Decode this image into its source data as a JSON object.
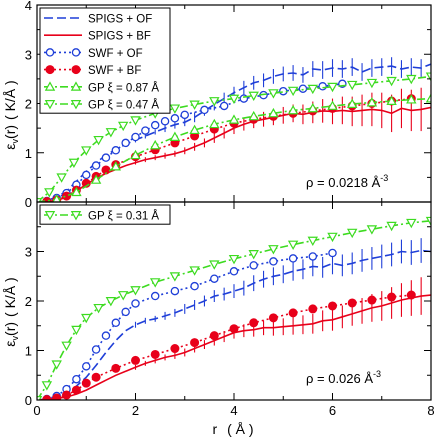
{
  "colors": {
    "blue": "#1f3fd8",
    "red": "#e8001a",
    "green": "#3ddb20",
    "frame": "#000000"
  },
  "shared_xaxis": {
    "label_prefix": "r",
    "label_unit": "( Å )",
    "ticks": [
      0,
      2,
      4,
      6,
      8
    ],
    "xlim": [
      0,
      8
    ]
  },
  "chart_data": [
    {
      "type": "line",
      "panel": "top",
      "ylabel_symbol": "ε",
      "ylabel_sub": "v",
      "ylabel_arg": "(r)",
      "ylabel_unit": "( K/Å )",
      "annotation": {
        "text": "ρ = 0.0218 Å",
        "sup": "-3"
      },
      "xlim": [
        0,
        8
      ],
      "ylim": [
        0,
        4
      ],
      "yticks": [
        0,
        1,
        2,
        3,
        4
      ],
      "legend_position": "top-left",
      "series": [
        {
          "name": "SPIGS + OF",
          "color": "#1f3fd8",
          "style": "dashed",
          "marker": "none",
          "x": [
            0,
            0.2,
            0.4,
            0.6,
            0.8,
            1.0,
            1.2,
            1.4,
            1.6,
            1.8,
            2.0,
            2.2,
            2.4,
            2.6,
            2.8,
            3.0,
            3.2,
            3.4,
            3.6,
            3.8,
            4.0,
            4.2,
            4.4,
            4.6,
            4.8,
            5.0,
            5.2,
            5.4,
            5.6,
            5.8,
            6.0,
            6.2,
            6.4,
            6.6,
            6.8,
            7.0,
            7.2,
            7.4,
            7.6,
            7.8,
            8.0
          ],
          "y": [
            0.0,
            0.03,
            0.1,
            0.22,
            0.42,
            0.62,
            0.8,
            0.95,
            1.07,
            1.17,
            1.26,
            1.34,
            1.42,
            1.5,
            1.57,
            1.62,
            1.72,
            1.85,
            1.98,
            2.1,
            2.22,
            2.32,
            2.42,
            2.47,
            2.55,
            2.6,
            2.62,
            2.58,
            2.7,
            2.68,
            2.72,
            2.7,
            2.74,
            2.64,
            2.72,
            2.74,
            2.76,
            2.7,
            2.74,
            2.72,
            2.8
          ],
          "errors": [
            0,
            0,
            0,
            0,
            0,
            0,
            0,
            0,
            0,
            0,
            0.05,
            0.05,
            0.05,
            0.08,
            0.08,
            0.08,
            0.1,
            0.1,
            0.12,
            0.12,
            0.12,
            0.14,
            0.14,
            0.14,
            0.15,
            0.15,
            0.16,
            0.16,
            0.16,
            0.18,
            0.18,
            0.18,
            0.18,
            0.18,
            0.18,
            0.18,
            0.18,
            0.18,
            0.18,
            0.18,
            0.18
          ]
        },
        {
          "name": "SPIGS + BF",
          "color": "#e8001a",
          "style": "solid",
          "marker": "none",
          "x": [
            0,
            0.2,
            0.4,
            0.6,
            0.8,
            1.0,
            1.2,
            1.4,
            1.6,
            1.8,
            2.0,
            2.2,
            2.4,
            2.6,
            2.8,
            3.0,
            3.2,
            3.4,
            3.6,
            3.8,
            4.0,
            4.2,
            4.4,
            4.6,
            4.8,
            5.0,
            5.2,
            5.4,
            5.6,
            5.8,
            6.0,
            6.2,
            6.4,
            6.6,
            6.8,
            7.0,
            7.2,
            7.4,
            7.6,
            7.8,
            8.0
          ],
          "y": [
            0.0,
            0.01,
            0.03,
            0.1,
            0.22,
            0.36,
            0.48,
            0.58,
            0.66,
            0.74,
            0.8,
            0.86,
            0.9,
            0.94,
            0.98,
            1.04,
            1.12,
            1.2,
            1.3,
            1.4,
            1.5,
            1.58,
            1.64,
            1.68,
            1.72,
            1.76,
            1.8,
            1.78,
            1.82,
            1.85,
            1.84,
            1.86,
            1.84,
            1.86,
            1.88,
            1.86,
            1.8,
            1.9,
            1.86,
            1.88,
            1.92
          ],
          "errors": [
            0,
            0,
            0,
            0,
            0,
            0,
            0,
            0,
            0,
            0,
            0.04,
            0.05,
            0.05,
            0.06,
            0.06,
            0.07,
            0.08,
            0.09,
            0.1,
            0.11,
            0.12,
            0.13,
            0.14,
            0.15,
            0.16,
            0.17,
            0.18,
            0.2,
            0.22,
            0.24,
            0.26,
            0.28,
            0.3,
            0.32,
            0.34,
            0.36,
            0.38,
            0.4,
            0.42,
            0.44,
            0.46
          ]
        },
        {
          "name": "SWF + OF",
          "color": "#1f3fd8",
          "style": "dotted",
          "marker": "open-circle",
          "x": [
            0.2,
            0.4,
            0.6,
            0.8,
            1.0,
            1.2,
            1.4,
            1.6,
            1.8,
            2.0,
            2.2,
            2.4,
            2.6,
            2.8,
            3.0,
            3.4,
            3.8,
            4.2,
            4.6,
            5.0,
            5.4,
            5.8,
            6.2
          ],
          "y": [
            0.02,
            0.08,
            0.18,
            0.35,
            0.55,
            0.74,
            0.9,
            1.05,
            1.2,
            1.32,
            1.45,
            1.56,
            1.64,
            1.7,
            1.77,
            1.87,
            1.95,
            2.1,
            2.17,
            2.25,
            2.3,
            2.35,
            2.4
          ]
        },
        {
          "name": "SWF + BF",
          "color": "#e8001a",
          "style": "dotted",
          "marker": "filled-circle",
          "x": [
            0.2,
            0.4,
            0.6,
            0.8,
            1.0,
            1.2,
            1.4,
            1.6,
            2.0,
            2.4,
            2.8,
            3.2,
            3.6,
            4.0,
            4.4,
            4.8,
            5.2,
            5.6,
            6.0,
            6.4,
            6.8,
            7.2,
            7.6
          ],
          "y": [
            0.01,
            0.04,
            0.12,
            0.24,
            0.38,
            0.52,
            0.65,
            0.76,
            0.92,
            1.06,
            1.2,
            1.34,
            1.48,
            1.6,
            1.68,
            1.74,
            1.8,
            1.85,
            1.9,
            1.95,
            2.0,
            2.05,
            2.1
          ]
        },
        {
          "name": "GP ξ = 0.87 Å",
          "color": "#3ddb20",
          "style": "dashdot",
          "marker": "triangle-up",
          "x": [
            0,
            0.4,
            0.8,
            1.2,
            1.6,
            2.0,
            2.4,
            2.8,
            3.2,
            3.6,
            4.0,
            4.4,
            4.8,
            5.2,
            5.6,
            6.0,
            6.4,
            6.8,
            7.2,
            7.6,
            8.0
          ],
          "y": [
            0.0,
            0.05,
            0.2,
            0.45,
            0.72,
            0.95,
            1.15,
            1.32,
            1.46,
            1.58,
            1.67,
            1.74,
            1.8,
            1.86,
            1.9,
            1.95,
            1.99,
            2.02,
            2.05,
            2.08,
            2.1
          ]
        },
        {
          "name": "GP ξ = 0.47 Å",
          "color": "#3ddb20",
          "style": "dashdot",
          "marker": "triangle-down",
          "x": [
            0,
            0.25,
            0.5,
            0.75,
            1.0,
            1.25,
            1.5,
            1.75,
            2.0,
            2.4,
            2.8,
            3.2,
            3.6,
            4.0,
            4.4,
            4.8,
            5.2,
            5.6,
            6.0,
            6.4,
            6.8,
            7.2,
            7.6,
            8.0
          ],
          "y": [
            0.0,
            0.2,
            0.5,
            0.8,
            1.05,
            1.26,
            1.42,
            1.55,
            1.66,
            1.8,
            1.9,
            1.98,
            2.05,
            2.1,
            2.16,
            2.21,
            2.26,
            2.3,
            2.34,
            2.38,
            2.42,
            2.46,
            2.5,
            2.55
          ]
        }
      ]
    },
    {
      "type": "line",
      "panel": "bottom",
      "ylabel_symbol": "ε",
      "ylabel_sub": "v",
      "ylabel_arg": "(r)",
      "ylabel_unit": "( K/Å )",
      "annotation": {
        "text": "ρ = 0.026 Å",
        "sup": "-3"
      },
      "xlim": [
        0,
        8
      ],
      "ylim": [
        0,
        4
      ],
      "yticks": [
        0,
        1,
        2,
        3
      ],
      "legend_position": "top-left",
      "series": [
        {
          "name": "",
          "color": "#1f3fd8",
          "style": "dashed",
          "marker": "none",
          "x": [
            0,
            0.2,
            0.4,
            0.6,
            0.8,
            1.0,
            1.2,
            1.4,
            1.6,
            1.8,
            2.0,
            2.2,
            2.4,
            2.6,
            2.8,
            3.0,
            3.2,
            3.4,
            3.6,
            3.8,
            4.0,
            4.2,
            4.4,
            4.6,
            4.8,
            5.0,
            5.2,
            5.4,
            5.6,
            5.8,
            6.0,
            6.2,
            6.4,
            6.6,
            6.8,
            7.0,
            7.2,
            7.4,
            7.6,
            7.8,
            8.0
          ],
          "y": [
            0.0,
            0.02,
            0.06,
            0.14,
            0.28,
            0.46,
            0.7,
            0.96,
            1.2,
            1.4,
            1.52,
            1.6,
            1.64,
            1.7,
            1.76,
            1.84,
            1.92,
            2.0,
            2.1,
            2.14,
            2.2,
            2.26,
            2.36,
            2.44,
            2.5,
            2.54,
            2.6,
            2.64,
            2.7,
            2.68,
            2.76,
            2.72,
            2.76,
            2.82,
            2.86,
            2.9,
            2.94,
            3.0,
            2.98,
            3.02,
            3.0
          ],
          "errors": [
            0,
            0,
            0,
            0,
            0,
            0,
            0,
            0,
            0,
            0,
            0.06,
            0.06,
            0.06,
            0.08,
            0.08,
            0.1,
            0.1,
            0.11,
            0.12,
            0.13,
            0.14,
            0.15,
            0.16,
            0.17,
            0.18,
            0.18,
            0.19,
            0.2,
            0.2,
            0.21,
            0.22,
            0.22,
            0.22,
            0.23,
            0.23,
            0.24,
            0.24,
            0.24,
            0.25,
            0.25,
            0.25
          ]
        },
        {
          "name": "",
          "color": "#e8001a",
          "style": "solid",
          "marker": "none",
          "x": [
            0,
            0.2,
            0.4,
            0.6,
            0.8,
            1.0,
            1.2,
            1.4,
            1.6,
            1.8,
            2.0,
            2.2,
            2.4,
            2.6,
            2.8,
            3.0,
            3.2,
            3.4,
            3.6,
            3.8,
            4.0,
            4.2,
            4.4,
            4.6,
            4.8,
            5.0,
            5.2,
            5.4,
            5.6,
            5.8,
            6.0,
            6.2,
            6.4,
            6.6,
            6.8,
            7.0,
            7.2,
            7.4,
            7.6,
            7.8,
            8.0
          ],
          "y": [
            0.0,
            0.01,
            0.03,
            0.06,
            0.12,
            0.2,
            0.3,
            0.4,
            0.5,
            0.58,
            0.66,
            0.74,
            0.8,
            0.86,
            0.9,
            0.96,
            1.04,
            1.12,
            1.2,
            1.28,
            1.36,
            1.4,
            1.42,
            1.46,
            1.46,
            1.48,
            1.5,
            1.52,
            1.54,
            1.6,
            1.62,
            1.68,
            1.74,
            1.8,
            1.86,
            1.9,
            1.96,
            2.02,
            2.06,
            2.1,
            2.12
          ],
          "errors": [
            0,
            0,
            0,
            0,
            0,
            0,
            0,
            0,
            0,
            0,
            0.05,
            0.05,
            0.06,
            0.06,
            0.07,
            0.08,
            0.08,
            0.09,
            0.1,
            0.11,
            0.12,
            0.13,
            0.14,
            0.15,
            0.16,
            0.17,
            0.18,
            0.19,
            0.2,
            0.21,
            0.22,
            0.23,
            0.24,
            0.26,
            0.28,
            0.3,
            0.32,
            0.34,
            0.36,
            0.38,
            0.4
          ]
        },
        {
          "name": "",
          "color": "#1f3fd8",
          "style": "dotted",
          "marker": "open-circle",
          "x": [
            0.2,
            0.4,
            0.6,
            0.8,
            1.0,
            1.2,
            1.4,
            1.6,
            1.8,
            2.0,
            2.4,
            2.8,
            3.2,
            3.6,
            4.0,
            4.4,
            4.8,
            5.2,
            5.6,
            6.0
          ],
          "y": [
            0.02,
            0.08,
            0.22,
            0.42,
            0.68,
            1.02,
            1.3,
            1.56,
            1.78,
            1.95,
            2.1,
            2.2,
            2.3,
            2.45,
            2.6,
            2.72,
            2.8,
            2.86,
            2.9,
            2.97
          ]
        },
        {
          "name": "",
          "color": "#e8001a",
          "style": "dotted",
          "marker": "filled-circle",
          "x": [
            0.2,
            0.4,
            0.6,
            0.8,
            1.0,
            1.2,
            1.6,
            2.0,
            2.4,
            2.8,
            3.2,
            3.6,
            4.0,
            4.4,
            4.8,
            5.2,
            5.6,
            6.0,
            6.4,
            6.8,
            7.2,
            7.6
          ],
          "y": [
            0.01,
            0.04,
            0.1,
            0.2,
            0.34,
            0.46,
            0.64,
            0.8,
            0.92,
            1.04,
            1.16,
            1.3,
            1.44,
            1.56,
            1.66,
            1.76,
            1.84,
            1.9,
            1.96,
            2.02,
            2.08,
            2.12
          ]
        },
        {
          "name": "GP ξ = 0.31 Å",
          "color": "#3ddb20",
          "style": "dashdot",
          "marker": "triangle-down",
          "x": [
            0,
            0.2,
            0.4,
            0.6,
            0.8,
            1.0,
            1.25,
            1.5,
            1.75,
            2.0,
            2.4,
            2.8,
            3.2,
            3.6,
            4.0,
            4.4,
            4.8,
            5.2,
            5.6,
            6.0,
            6.4,
            6.8,
            7.2,
            7.6,
            8.0
          ],
          "y": [
            0.0,
            0.3,
            0.72,
            1.1,
            1.42,
            1.66,
            1.86,
            2.0,
            2.12,
            2.22,
            2.38,
            2.5,
            2.62,
            2.74,
            2.85,
            2.95,
            3.05,
            3.14,
            3.22,
            3.3,
            3.38,
            3.45,
            3.52,
            3.58,
            3.62
          ]
        }
      ]
    }
  ]
}
